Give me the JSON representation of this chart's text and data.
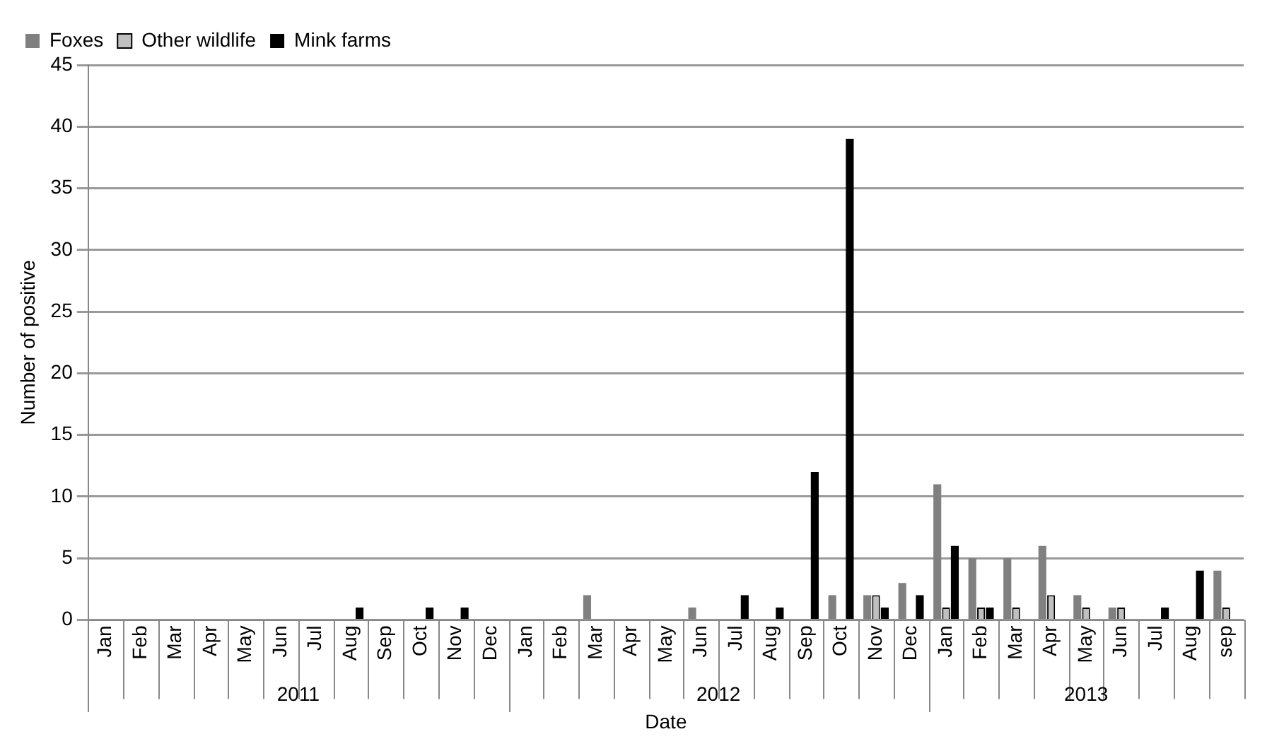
{
  "chart_data": {
    "type": "bar",
    "xlabel": "Date",
    "ylabel": "Number of positive",
    "categories": [
      "Jan",
      "Feb",
      "Mar",
      "Apr",
      "May",
      "Jun",
      "Jul",
      "Aug",
      "Sep",
      "Oct",
      "Nov",
      "Dec",
      "Jan",
      "Feb",
      "Mar",
      "Apr",
      "May",
      "Jun",
      "Jul",
      "Aug",
      "Sep",
      "Oct",
      "Nov",
      "Dec",
      "Jan",
      "Feb",
      "Mar",
      "Apr",
      "May",
      "Jun",
      "Jul",
      "Aug",
      "sep"
    ],
    "series": [
      {
        "name": "Foxes",
        "color": "#808080",
        "values": [
          0,
          0,
          0,
          0,
          0,
          0,
          0,
          0,
          0,
          0,
          0,
          0,
          0,
          0,
          2,
          0,
          0,
          1,
          0,
          0,
          0,
          2,
          2,
          3,
          11,
          5,
          5,
          6,
          2,
          1,
          0,
          0,
          4
        ]
      },
      {
        "name": "Other wildlife",
        "color": "#c0c0c0",
        "values": [
          0,
          0,
          0,
          0,
          0,
          0,
          0,
          0,
          0,
          0,
          0,
          0,
          0,
          0,
          0,
          0,
          0,
          0,
          0,
          0,
          0,
          0,
          2,
          0,
          1,
          1,
          1,
          2,
          1,
          1,
          0,
          0,
          1
        ]
      },
      {
        "name": "Mink farms",
        "color": "#000000",
        "values": [
          0,
          0,
          0,
          0,
          0,
          0,
          0,
          1,
          0,
          1,
          1,
          0,
          0,
          0,
          0,
          0,
          0,
          0,
          2,
          1,
          12,
          39,
          1,
          2,
          6,
          1,
          0,
          0,
          0,
          0,
          1,
          4,
          0
        ]
      }
    ],
    "annotations": [
      "2011",
      "2012",
      "2013"
    ],
    "ylim": [
      0,
      45
    ],
    "yticks": [
      0,
      5,
      10,
      15,
      20,
      25,
      30,
      35,
      40,
      45
    ],
    "grid": "y",
    "legend": "top left"
  }
}
